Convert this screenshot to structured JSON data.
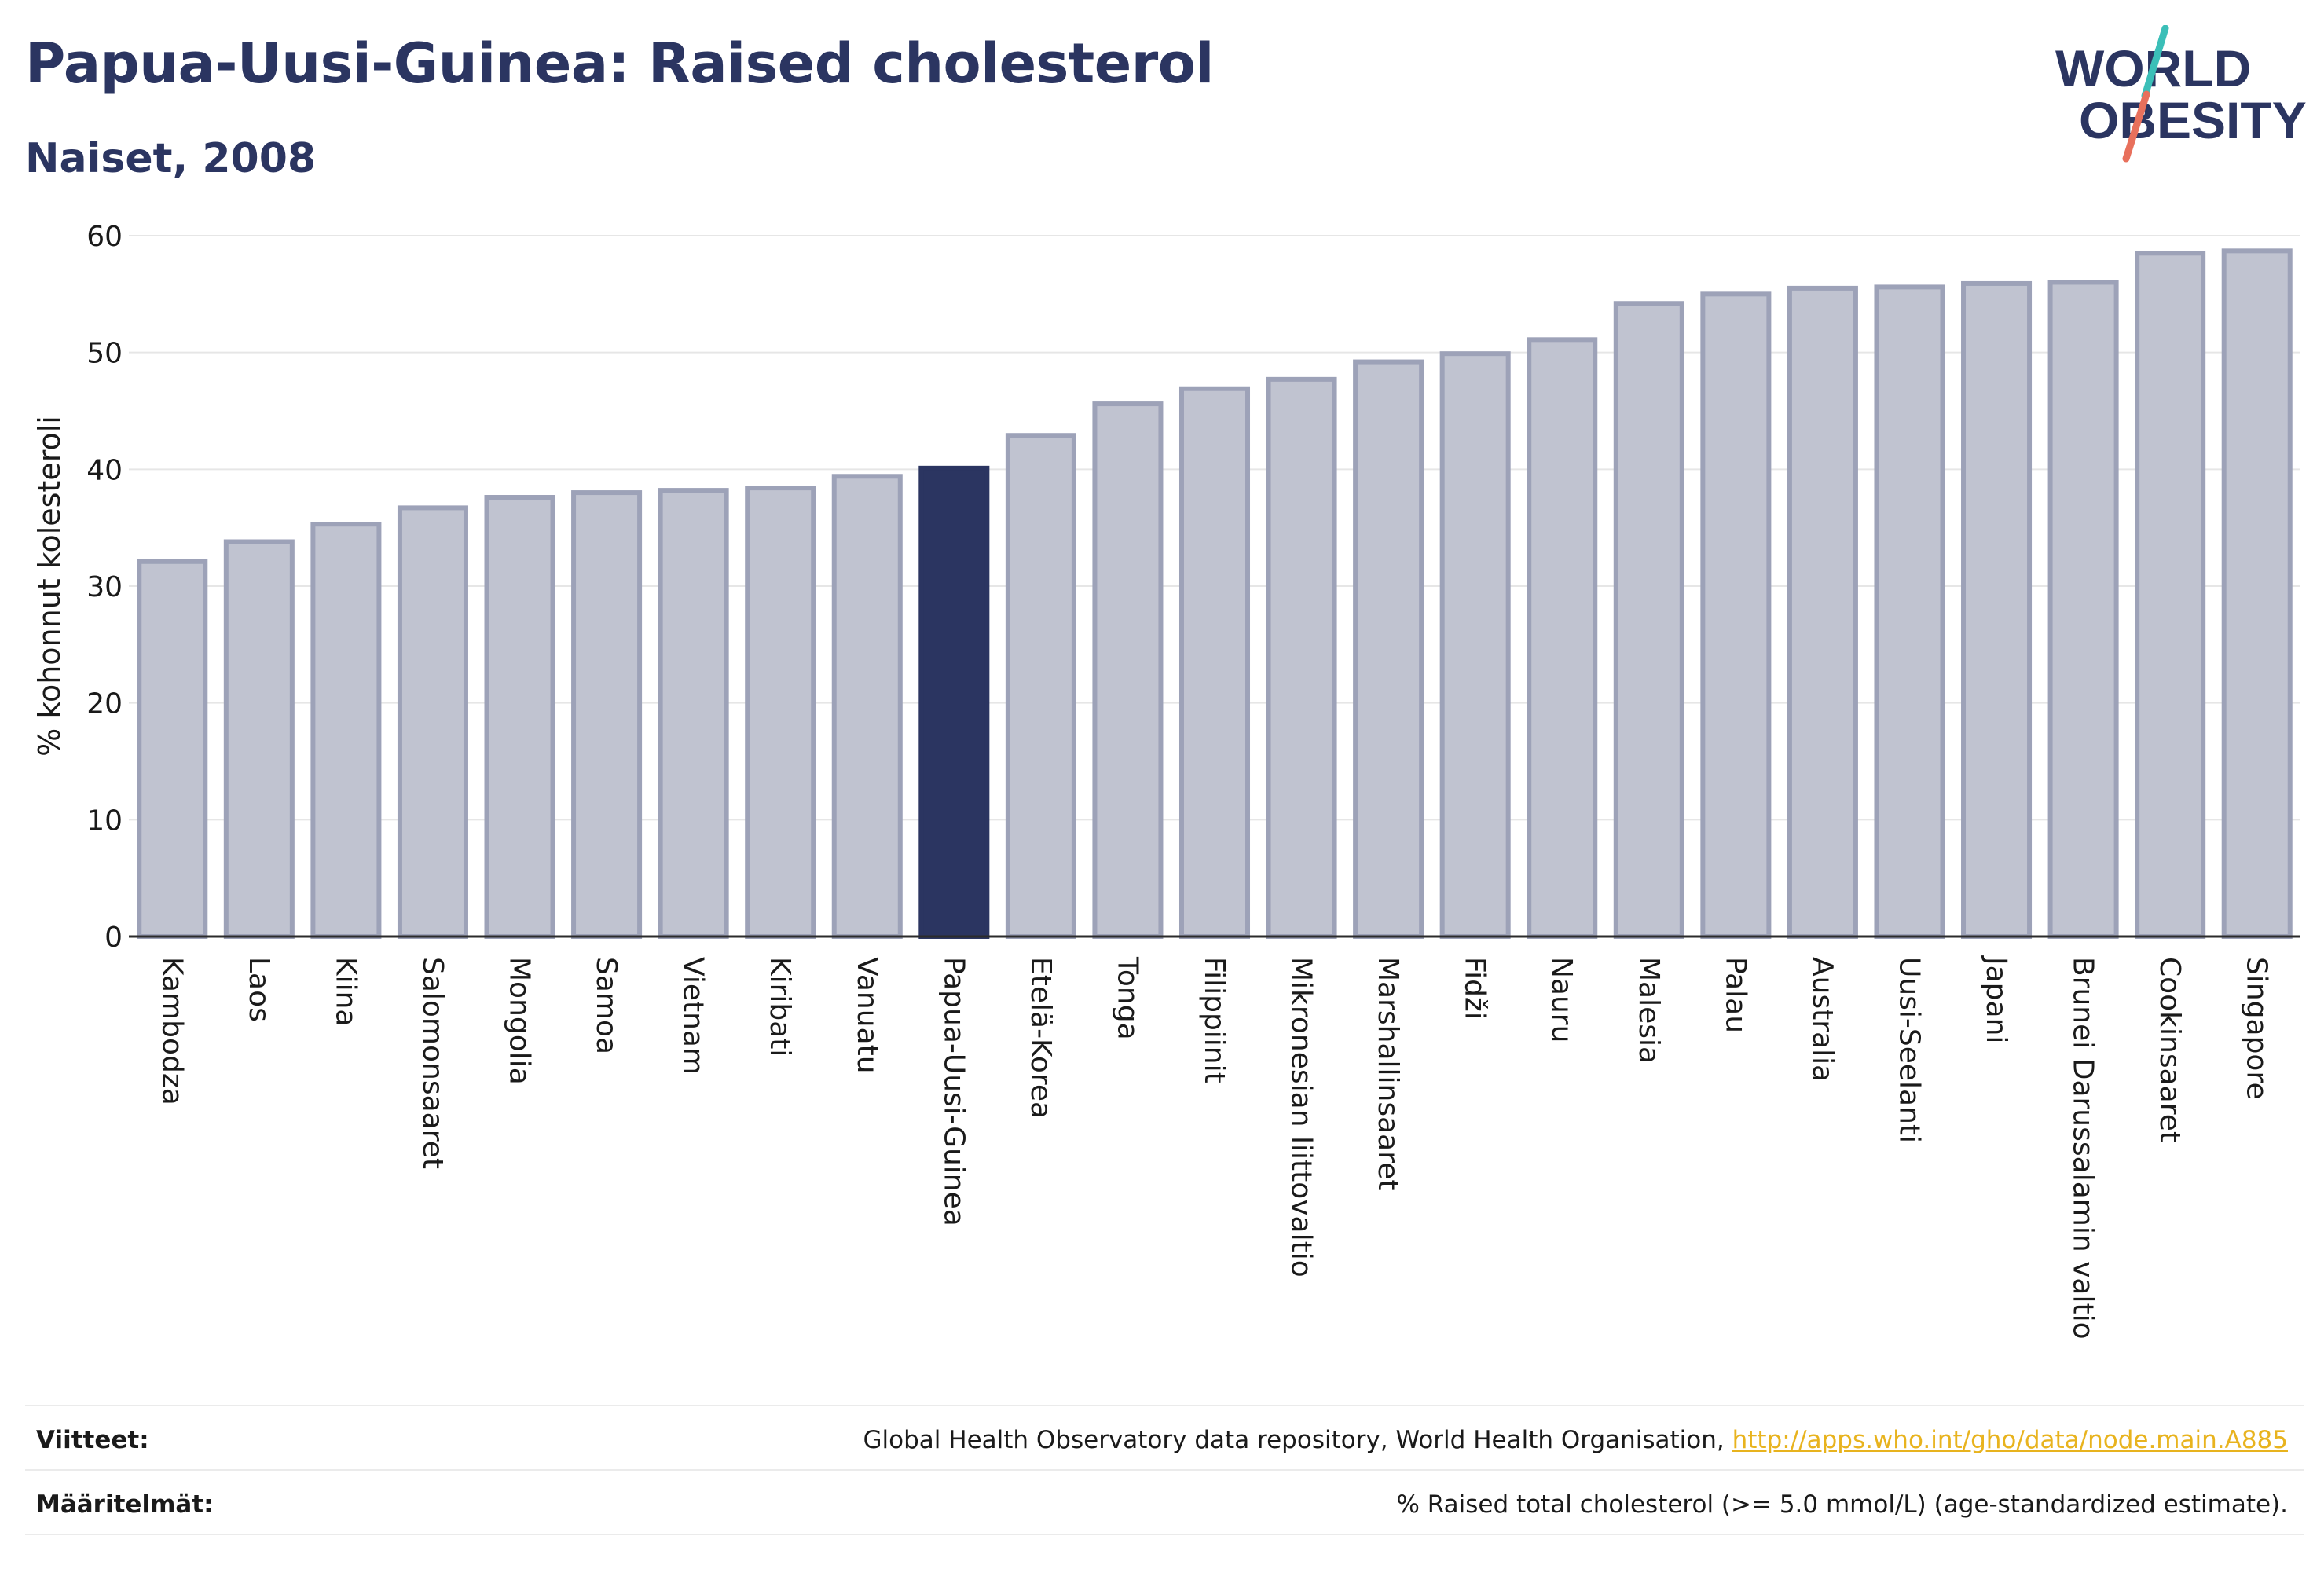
{
  "header": {
    "title": "Papua-Uusi-Guinea: Raised cholesterol",
    "subtitle": "Naiset, 2008"
  },
  "logo": {
    "line1": "WORLD",
    "line2": "OBESITY"
  },
  "colors": {
    "highlight": "#2b3561",
    "bar": "#c0c3d0",
    "bar_edge": "#9da2b8",
    "logo_teal": "#3bbfb8",
    "logo_coral": "#e8705c",
    "link": "#e8b31e"
  },
  "chart_data": {
    "type": "bar",
    "title": "Papua-Uusi-Guinea: Raised cholesterol",
    "subtitle": "Naiset, 2008",
    "xlabel": "",
    "ylabel": "% kohonnut kolesteroli",
    "ylim": [
      0,
      60
    ],
    "yticks": [
      0,
      10,
      20,
      30,
      40,
      50,
      60
    ],
    "grid": true,
    "highlight": "Papua-Uusi-Guinea",
    "categories": [
      "Kambodza",
      "Laos",
      "Kiina",
      "Salomonsaaret",
      "Mongolia",
      "Samoa",
      "Vietnam",
      "Kiribati",
      "Vanuatu",
      "Papua-Uusi-Guinea",
      "Etelä-Korea",
      "Tonga",
      "Filippiinit",
      "Mikronesian liittovaltio",
      "Marshallinsaaret",
      "Fidži",
      "Nauru",
      "Malesia",
      "Palau",
      "Australia",
      "Uusi-Seelanti",
      "Japani",
      "Brunei Darussalamin valtio",
      "Cookinsaaret",
      "Singapore"
    ],
    "values": [
      32.1,
      33.8,
      35.3,
      36.7,
      37.6,
      38.0,
      38.2,
      38.4,
      39.4,
      40.1,
      42.9,
      45.6,
      46.9,
      47.7,
      49.2,
      49.9,
      51.1,
      54.2,
      55.0,
      55.5,
      55.6,
      55.9,
      56.0,
      58.5,
      58.7
    ]
  },
  "footer": {
    "sources_label": "Viitteet:",
    "sources_text": "Global Health Observatory data repository, World Health Organisation, ",
    "sources_link": "http://apps.who.int/gho/data/node.main.A885",
    "definitions_label": "Määritelmät:",
    "definitions_text": "% Raised total cholesterol (>= 5.0 mmol/L) (age-standardized estimate)."
  }
}
